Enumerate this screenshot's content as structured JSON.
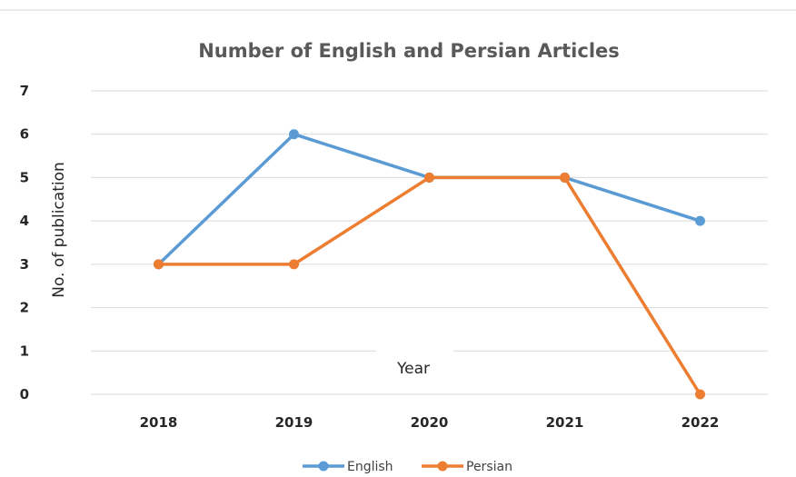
{
  "chart_data": {
    "type": "line",
    "title": "Number of English and Persian Articles",
    "xlabel": "Year",
    "ylabel": "No. of publication",
    "categories": [
      "2018",
      "2019",
      "2020",
      "2021",
      "2022"
    ],
    "ylim": [
      0,
      7
    ],
    "yticks": [
      "0",
      "1",
      "2",
      "3",
      "4",
      "5",
      "6",
      "7"
    ],
    "grid": true,
    "legend_position": "bottom",
    "series": [
      {
        "name": "English",
        "color": "#5B9BD5",
        "values": [
          3,
          6,
          5,
          5,
          4
        ]
      },
      {
        "name": "Persian",
        "color": "#ED7D31",
        "values": [
          3,
          3,
          5,
          5,
          0
        ]
      }
    ]
  }
}
